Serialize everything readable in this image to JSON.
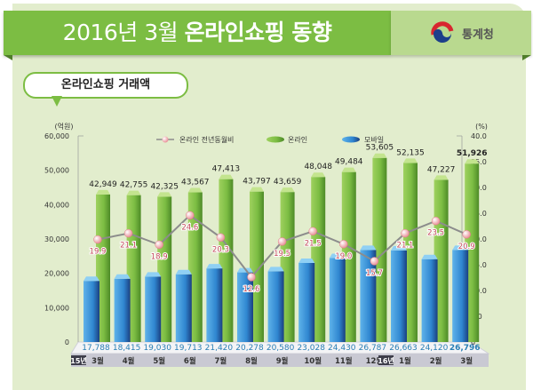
{
  "header": {
    "title_prefix": "2016년 3월 ",
    "title_bold": "온라인쇼핑 동향",
    "agency": "통계청",
    "agency_icon": "taegeuk-logo-icon"
  },
  "section": {
    "label": "온라인쇼핑 거래액"
  },
  "chart_data": {
    "type": "bar+line",
    "title": "온라인쇼핑 거래액",
    "left_axis": {
      "unit": "(억원)",
      "range": [
        0,
        60000
      ],
      "ticks": [
        "0",
        "10,000",
        "20,000",
        "30,000",
        "40,000",
        "50,000",
        "60,000"
      ]
    },
    "right_axis": {
      "unit": "(%)",
      "range": [
        0,
        40
      ],
      "ticks": [
        "0",
        "5.0",
        "10.0",
        "15.0",
        "20.0",
        "25.0",
        "30.0",
        "35.0",
        "40.0"
      ]
    },
    "legend": [
      "온라인 전년동월비",
      "온라인",
      "모바일"
    ],
    "legend_position": "top-center",
    "categories": [
      "3월",
      "4월",
      "5월",
      "6월",
      "7월",
      "8월",
      "9월",
      "10월",
      "11월",
      "12월",
      "1월",
      "2월",
      "3월"
    ],
    "year_badges": [
      {
        "index": 0,
        "label": "15년"
      },
      {
        "index": 10,
        "label": "16년"
      }
    ],
    "series": [
      {
        "name": "온라인",
        "type": "bar",
        "axis": "left",
        "color": "#7cbd43",
        "values": [
          42949,
          42755,
          42325,
          43567,
          47413,
          43797,
          43659,
          48048,
          49484,
          53605,
          52135,
          47227,
          51926
        ],
        "labels": [
          "42,949",
          "42,755",
          "42,325",
          "43,567",
          "47,413",
          "43,797",
          "43,659",
          "48,048",
          "49,484",
          "53,605",
          "52,135",
          "47,227",
          "51,926"
        ]
      },
      {
        "name": "모바일",
        "type": "bar",
        "axis": "left",
        "color": "#2f86d0",
        "values": [
          17788,
          18415,
          19030,
          19713,
          21420,
          20278,
          20580,
          23028,
          24430,
          26787,
          26663,
          24120,
          26796
        ],
        "labels": [
          "17,788",
          "18,415",
          "19,030",
          "19,713",
          "21,420",
          "20,278",
          "20,580",
          "23,028",
          "24,430",
          "26,787",
          "26,663",
          "24,120",
          "26,796"
        ]
      },
      {
        "name": "온라인 전년동월비",
        "type": "line",
        "axis": "right",
        "color": "#8c8c8c",
        "values": [
          19.9,
          21.1,
          18.9,
          24.6,
          20.3,
          12.6,
          19.5,
          21.5,
          19.0,
          15.7,
          21.1,
          23.5,
          20.9
        ],
        "labels": [
          "19.9",
          "21.1",
          "18.9",
          "24.6",
          "20.3",
          "12.6",
          "19.5",
          "21.5",
          "19.0",
          "15.7",
          "21.1",
          "23.5",
          "20.9"
        ]
      }
    ]
  }
}
